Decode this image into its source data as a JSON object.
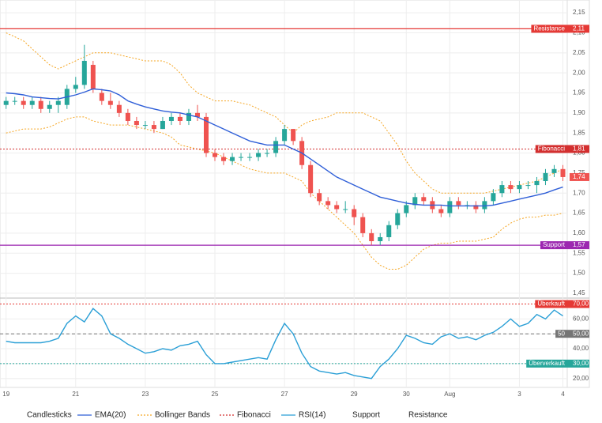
{
  "chart_data": {
    "type": "candlestick",
    "xlim": [
      -0.7,
      64.5
    ],
    "xticks": [
      {
        "value": 0,
        "label": "19"
      },
      {
        "value": 8,
        "label": "21"
      },
      {
        "value": 16,
        "label": "23"
      },
      {
        "value": 24,
        "label": "25"
      },
      {
        "value": 32,
        "label": "27"
      },
      {
        "value": 40,
        "label": "29"
      },
      {
        "value": 46,
        "label": "30"
      },
      {
        "value": 51,
        "label": "Aug"
      },
      {
        "value": 59,
        "label": "3"
      },
      {
        "value": 64,
        "label": "4"
      }
    ],
    "ylim": [
      1.44,
      2.17
    ],
    "yticks": [
      {
        "value": 2.15,
        "label": "2,15"
      },
      {
        "value": 2.1,
        "label": "2,10"
      },
      {
        "value": 2.05,
        "label": "2,05"
      },
      {
        "value": 2.0,
        "label": "2,00"
      },
      {
        "value": 1.95,
        "label": "1,95"
      },
      {
        "value": 1.9,
        "label": "1,90"
      },
      {
        "value": 1.85,
        "label": "1,85"
      },
      {
        "value": 1.8,
        "label": "1,80"
      },
      {
        "value": 1.75,
        "label": "1,75"
      },
      {
        "value": 1.7,
        "label": "1,70"
      },
      {
        "value": 1.65,
        "label": "1,65"
      },
      {
        "value": 1.6,
        "label": "1,60"
      },
      {
        "value": 1.55,
        "label": "1,55"
      },
      {
        "value": 1.5,
        "label": "1,50"
      },
      {
        "value": 1.45,
        "label": "1,45"
      }
    ],
    "grid": true,
    "candles": {
      "name": "Candlesticks",
      "up_color": "#26a69a",
      "down_color": "#ef5350",
      "ohlc": [
        [
          1.92,
          1.94,
          1.91,
          1.93
        ],
        [
          1.93,
          1.94,
          1.92,
          1.93
        ],
        [
          1.93,
          1.94,
          1.91,
          1.92
        ],
        [
          1.92,
          1.94,
          1.91,
          1.93
        ],
        [
          1.93,
          1.94,
          1.9,
          1.91
        ],
        [
          1.91,
          1.93,
          1.9,
          1.92
        ],
        [
          1.92,
          1.94,
          1.9,
          1.93
        ],
        [
          1.92,
          1.97,
          1.91,
          1.96
        ],
        [
          1.96,
          1.99,
          1.95,
          1.97
        ],
        [
          1.97,
          2.07,
          1.96,
          2.03
        ],
        [
          2.02,
          2.03,
          1.95,
          1.96
        ],
        [
          1.95,
          1.96,
          1.92,
          1.93
        ],
        [
          1.93,
          1.95,
          1.91,
          1.92
        ],
        [
          1.92,
          1.93,
          1.89,
          1.9
        ],
        [
          1.9,
          1.91,
          1.87,
          1.88
        ],
        [
          1.88,
          1.89,
          1.86,
          1.87
        ],
        [
          1.87,
          1.88,
          1.86,
          1.87
        ],
        [
          1.87,
          1.88,
          1.85,
          1.86
        ],
        [
          1.86,
          1.89,
          1.86,
          1.88
        ],
        [
          1.88,
          1.9,
          1.87,
          1.89
        ],
        [
          1.89,
          1.9,
          1.87,
          1.88
        ],
        [
          1.88,
          1.91,
          1.87,
          1.9
        ],
        [
          1.9,
          1.92,
          1.88,
          1.89
        ],
        [
          1.89,
          1.9,
          1.79,
          1.8
        ],
        [
          1.8,
          1.81,
          1.78,
          1.79
        ],
        [
          1.79,
          1.8,
          1.77,
          1.78
        ],
        [
          1.78,
          1.8,
          1.77,
          1.79
        ],
        [
          1.79,
          1.8,
          1.78,
          1.79
        ],
        [
          1.79,
          1.8,
          1.78,
          1.79
        ],
        [
          1.79,
          1.81,
          1.78,
          1.8
        ],
        [
          1.8,
          1.81,
          1.79,
          1.8
        ],
        [
          1.8,
          1.84,
          1.79,
          1.83
        ],
        [
          1.83,
          1.87,
          1.82,
          1.86
        ],
        [
          1.86,
          1.86,
          1.82,
          1.83
        ],
        [
          1.83,
          1.84,
          1.76,
          1.77
        ],
        [
          1.77,
          1.78,
          1.69,
          1.7
        ],
        [
          1.7,
          1.71,
          1.67,
          1.68
        ],
        [
          1.68,
          1.69,
          1.66,
          1.67
        ],
        [
          1.67,
          1.68,
          1.65,
          1.66
        ],
        [
          1.66,
          1.68,
          1.65,
          1.66
        ],
        [
          1.66,
          1.67,
          1.62,
          1.64
        ],
        [
          1.64,
          1.65,
          1.59,
          1.6
        ],
        [
          1.6,
          1.61,
          1.57,
          1.58
        ],
        [
          1.58,
          1.6,
          1.57,
          1.59
        ],
        [
          1.59,
          1.63,
          1.58,
          1.62
        ],
        [
          1.62,
          1.66,
          1.61,
          1.65
        ],
        [
          1.65,
          1.68,
          1.64,
          1.67
        ],
        [
          1.67,
          1.7,
          1.66,
          1.69
        ],
        [
          1.69,
          1.7,
          1.67,
          1.68
        ],
        [
          1.68,
          1.69,
          1.65,
          1.66
        ],
        [
          1.66,
          1.67,
          1.64,
          1.65
        ],
        [
          1.65,
          1.69,
          1.64,
          1.68
        ],
        [
          1.68,
          1.69,
          1.66,
          1.67
        ],
        [
          1.67,
          1.68,
          1.66,
          1.67
        ],
        [
          1.67,
          1.68,
          1.65,
          1.66
        ],
        [
          1.66,
          1.69,
          1.65,
          1.68
        ],
        [
          1.68,
          1.71,
          1.67,
          1.7
        ],
        [
          1.7,
          1.73,
          1.69,
          1.72
        ],
        [
          1.72,
          1.73,
          1.7,
          1.71
        ],
        [
          1.71,
          1.73,
          1.7,
          1.72
        ],
        [
          1.72,
          1.73,
          1.71,
          1.72
        ],
        [
          1.72,
          1.74,
          1.7,
          1.73
        ],
        [
          1.73,
          1.76,
          1.72,
          1.75
        ],
        [
          1.75,
          1.77,
          1.74,
          1.76
        ],
        [
          1.76,
          1.77,
          1.73,
          1.74
        ]
      ]
    },
    "ema": {
      "name": "EMA(20)",
      "color": "#2f5fd8",
      "values": [
        1.95,
        1.948,
        1.945,
        1.94,
        1.938,
        1.936,
        1.935,
        1.94,
        1.945,
        1.952,
        1.96,
        1.958,
        1.955,
        1.945,
        1.93,
        1.922,
        1.915,
        1.91,
        1.905,
        1.902,
        1.9,
        1.895,
        1.89,
        1.88,
        1.87,
        1.86,
        1.85,
        1.84,
        1.83,
        1.825,
        1.82,
        1.82,
        1.82,
        1.81,
        1.8,
        1.785,
        1.77,
        1.755,
        1.74,
        1.73,
        1.72,
        1.71,
        1.7,
        1.69,
        1.685,
        1.68,
        1.675,
        1.672,
        1.67,
        1.67,
        1.67,
        1.668,
        1.668,
        1.668,
        1.668,
        1.668,
        1.67,
        1.675,
        1.68,
        1.685,
        1.69,
        1.695,
        1.7,
        1.708,
        1.715
      ]
    },
    "bollinger": {
      "name": "Bollinger Bands",
      "color": "#f5a623",
      "upper": [
        2.1,
        2.09,
        2.08,
        2.06,
        2.04,
        2.02,
        2.01,
        2.02,
        2.03,
        2.04,
        2.05,
        2.05,
        2.05,
        2.045,
        2.04,
        2.035,
        2.03,
        2.03,
        2.03,
        2.02,
        2.0,
        1.97,
        1.95,
        1.94,
        1.93,
        1.93,
        1.93,
        1.925,
        1.92,
        1.91,
        1.9,
        1.89,
        1.87,
        1.85,
        1.87,
        1.88,
        1.885,
        1.89,
        1.9,
        1.9,
        1.9,
        1.9,
        1.89,
        1.88,
        1.85,
        1.82,
        1.78,
        1.75,
        1.73,
        1.71,
        1.7,
        1.7,
        1.7,
        1.7,
        1.7,
        1.7,
        1.705,
        1.71,
        1.715,
        1.72,
        1.725,
        1.73,
        1.74,
        1.75,
        1.76
      ],
      "lower": [
        1.85,
        1.855,
        1.86,
        1.86,
        1.86,
        1.865,
        1.875,
        1.885,
        1.89,
        1.89,
        1.88,
        1.875,
        1.87,
        1.87,
        1.87,
        1.865,
        1.86,
        1.855,
        1.85,
        1.84,
        1.82,
        1.815,
        1.81,
        1.805,
        1.8,
        1.79,
        1.78,
        1.77,
        1.76,
        1.755,
        1.75,
        1.75,
        1.75,
        1.74,
        1.73,
        1.7,
        1.68,
        1.66,
        1.64,
        1.62,
        1.6,
        1.57,
        1.54,
        1.52,
        1.51,
        1.51,
        1.52,
        1.54,
        1.56,
        1.57,
        1.575,
        1.575,
        1.58,
        1.58,
        1.58,
        1.585,
        1.59,
        1.61,
        1.625,
        1.635,
        1.64,
        1.64,
        1.645,
        1.645,
        1.65
      ]
    },
    "levels": [
      {
        "name": "Resistance",
        "value": 2.11,
        "value_label": "2,11",
        "color": "#e53935",
        "dash": "solid"
      },
      {
        "name": "Fibonacci",
        "value": 1.81,
        "value_label": "1,81",
        "color": "#d32f2f",
        "dash": "dotted"
      },
      {
        "name": "Support",
        "value": 1.57,
        "value_label": "1,57",
        "color": "#9c27b0",
        "dash": "solid"
      }
    ],
    "last_price": {
      "value": 1.74,
      "label": "1,74",
      "color": "#ef5350"
    },
    "rsi": {
      "name": "RSI(14)",
      "color": "#2a9fd6",
      "values": [
        45,
        44,
        44,
        44,
        44,
        45,
        47,
        57,
        62,
        58,
        67,
        62,
        50,
        47,
        43,
        40,
        37,
        38,
        40,
        39,
        42,
        43,
        45,
        36,
        30,
        30,
        31,
        32,
        33,
        34,
        33,
        46,
        57,
        50,
        37,
        28,
        25,
        24,
        23,
        24,
        22,
        21,
        20,
        28,
        33,
        40,
        49,
        47,
        44,
        43,
        48,
        50,
        47,
        48,
        46,
        49,
        51,
        55,
        60,
        55,
        57,
        63,
        60,
        66,
        62
      ],
      "ylim": [
        14,
        74
      ],
      "yticks": [
        {
          "value": 60,
          "label": "60,00"
        },
        {
          "value": 50,
          "label": "50,00"
        },
        {
          "value": 40,
          "label": "40,00"
        },
        {
          "value": 30,
          "label": "30,00"
        },
        {
          "value": 20,
          "label": "20,00"
        }
      ],
      "levels": [
        {
          "name": "Überkauft",
          "value": 70,
          "value_label": "70,00",
          "color": "#e53935",
          "dash": "dotted"
        },
        {
          "name": "50",
          "value": 50,
          "value_label": "50,00",
          "color": "#757575",
          "dash": "dashed"
        },
        {
          "name": "Überverkauft",
          "value": 30,
          "value_label": "30,00",
          "color": "#26a69a",
          "dash": "dotted"
        }
      ]
    }
  }
}
